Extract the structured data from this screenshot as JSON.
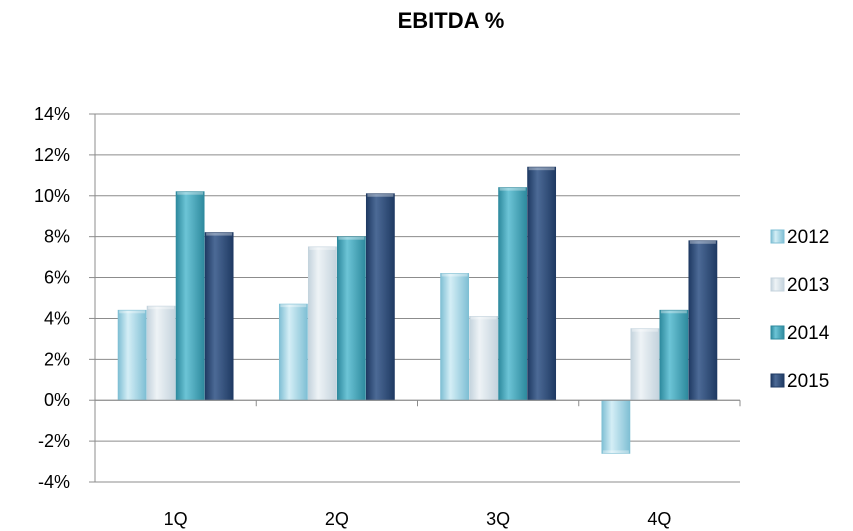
{
  "chart_data": {
    "type": "bar",
    "title": "EBITDA %",
    "categories": [
      "1Q",
      "2Q",
      "3Q",
      "4Q"
    ],
    "series": [
      {
        "name": "2012",
        "values": [
          4.4,
          4.7,
          6.2,
          -2.6
        ]
      },
      {
        "name": "2013",
        "values": [
          4.6,
          7.5,
          4.1,
          3.5
        ]
      },
      {
        "name": "2014",
        "values": [
          10.2,
          8.0,
          10.4,
          4.4
        ]
      },
      {
        "name": "2015",
        "values": [
          8.2,
          10.1,
          11.4,
          7.8
        ]
      }
    ],
    "ylim": [
      -4,
      14
    ],
    "yticks": [
      14,
      12,
      10,
      8,
      6,
      4,
      2,
      0,
      -2,
      -4
    ],
    "ytick_labels": [
      "14%",
      "12%",
      "10%",
      "8%",
      "6%",
      "4%",
      "2%",
      "0%",
      "-2%",
      "-4%"
    ],
    "grid": true,
    "legend_position": "right",
    "xlabel": "",
    "ylabel": ""
  },
  "colors": {
    "series": [
      "#7fbfd4",
      "#c4d3dd",
      "#2e8a9e",
      "#1f3a63"
    ],
    "series_light": [
      "#d4eef6",
      "#eef3f6",
      "#6cc4d6",
      "#4c6a96"
    ],
    "gridline": "#8c8c8c",
    "axis": "#8c8c8c"
  }
}
